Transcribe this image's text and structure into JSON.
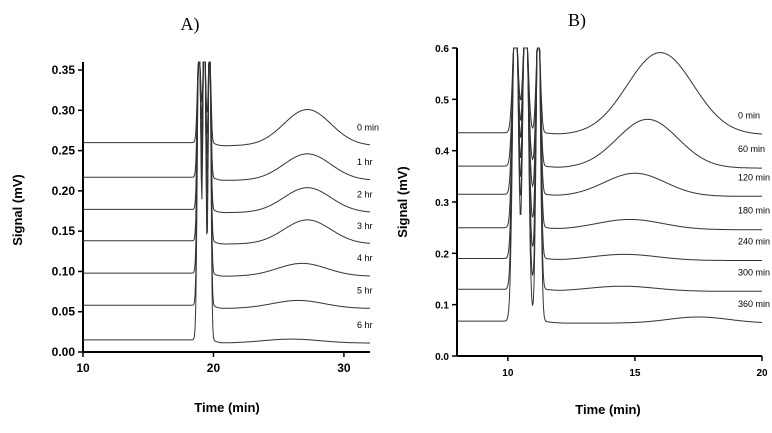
{
  "chart_data": [
    {
      "type": "line",
      "title": "A)",
      "xlabel": "Time (min)",
      "ylabel": "Signal (mV)",
      "xlim": [
        10,
        32
      ],
      "ylim": [
        0,
        0.36
      ],
      "xticks": [
        "10",
        "20",
        "30"
      ],
      "yticks": [
        "0.00",
        "0.05",
        "0.10",
        "0.15",
        "0.20",
        "0.25",
        "0.30",
        "0.35"
      ],
      "series": [
        {
          "name": "0 min",
          "baseline": 0.26,
          "broad_peak": {
            "x": 27.2,
            "height": 0.045,
            "width": 1.8
          }
        },
        {
          "name": "1 hr",
          "baseline": 0.217,
          "broad_peak": {
            "x": 27.2,
            "height": 0.033,
            "width": 1.8
          }
        },
        {
          "name": "2 hr",
          "baseline": 0.177,
          "broad_peak": {
            "x": 27.2,
            "height": 0.031,
            "width": 1.8
          }
        },
        {
          "name": "3 hr",
          "baseline": 0.138,
          "broad_peak": {
            "x": 27.2,
            "height": 0.03,
            "width": 1.8
          }
        },
        {
          "name": "4 hr",
          "baseline": 0.098,
          "broad_peak": {
            "x": 26.8,
            "height": 0.016,
            "width": 1.9
          }
        },
        {
          "name": "5 hr",
          "baseline": 0.058,
          "broad_peak": {
            "x": 26.5,
            "height": 0.01,
            "width": 2.0
          }
        },
        {
          "name": "6 hr",
          "baseline": 0.015,
          "broad_peak": {
            "x": 26.0,
            "height": 0.005,
            "width": 2.2
          }
        }
      ]
    },
    {
      "type": "line",
      "title": "B)",
      "xlabel": "Time (min)",
      "ylabel": "Signal (mV)",
      "xlim": [
        8,
        20
      ],
      "ylim": [
        0,
        0.6
      ],
      "xticks": [
        "10",
        "15",
        "20"
      ],
      "yticks": [
        "0.0",
        "0.1",
        "0.2",
        "0.3",
        "0.4",
        "0.5",
        "0.6"
      ],
      "series": [
        {
          "name": "0 min",
          "baseline": 0.435,
          "broad_peak": {
            "x": 16.0,
            "height": 0.16,
            "width": 1.3
          }
        },
        {
          "name": "60 min",
          "baseline": 0.37,
          "broad_peak": {
            "x": 15.5,
            "height": 0.095,
            "width": 1.2
          }
        },
        {
          "name": "120 min",
          "baseline": 0.315,
          "broad_peak": {
            "x": 15.0,
            "height": 0.045,
            "width": 1.2
          }
        },
        {
          "name": "180 min",
          "baseline": 0.25,
          "broad_peak": {
            "x": 14.8,
            "height": 0.02,
            "width": 1.3
          }
        },
        {
          "name": "240 min",
          "baseline": 0.19,
          "broad_peak": {
            "x": 14.6,
            "height": 0.012,
            "width": 1.3
          }
        },
        {
          "name": "300 min",
          "baseline": 0.13,
          "broad_peak": {
            "x": 14.5,
            "height": 0.01,
            "width": 1.3
          }
        },
        {
          "name": "360 min",
          "baseline": 0.068,
          "broad_peak": {
            "x": 17.5,
            "height": 0.012,
            "width": 1.2
          }
        }
      ]
    }
  ]
}
